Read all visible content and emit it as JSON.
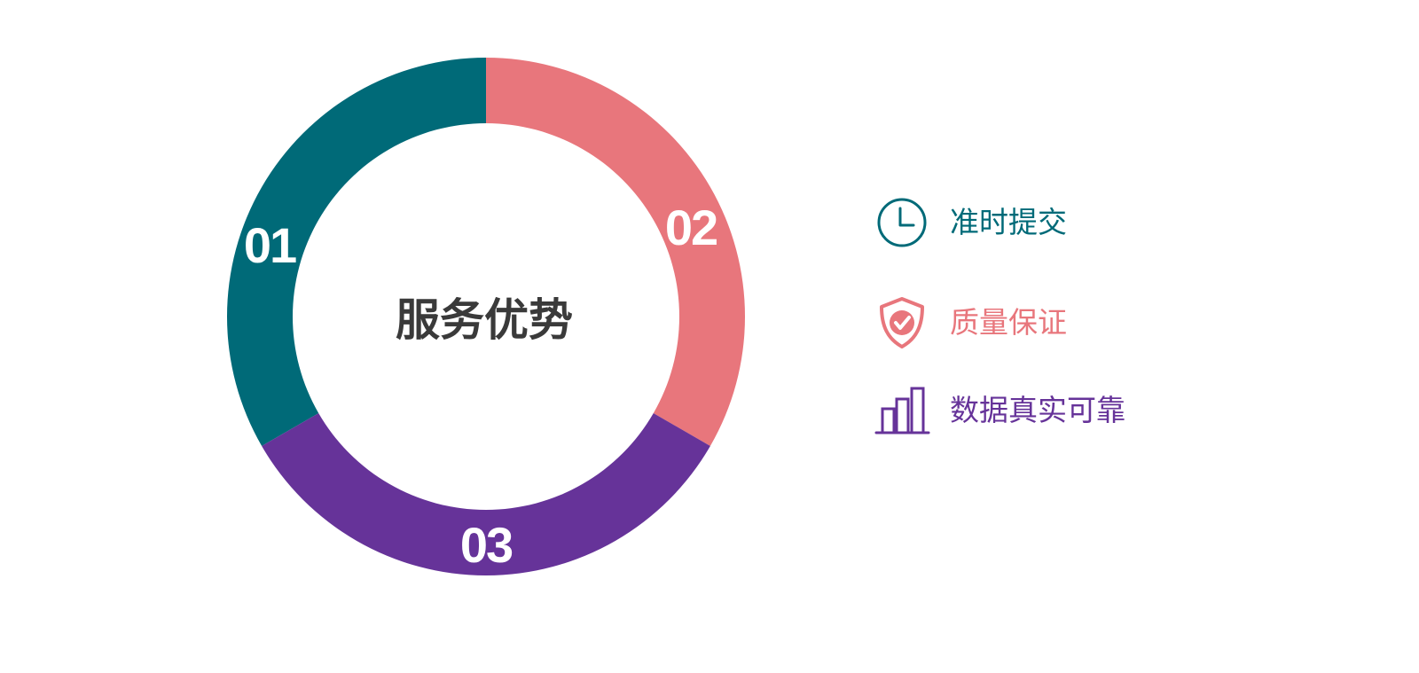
{
  "center_title": "服务优势",
  "colors": {
    "teal": "#006A78",
    "coral": "#E8767C",
    "purple": "#663399",
    "center_text": "#3A3A3A"
  },
  "segments": [
    {
      "number": "01",
      "color": "#006A78"
    },
    {
      "number": "02",
      "color": "#E8767C"
    },
    {
      "number": "03",
      "color": "#663399"
    }
  ],
  "legend": [
    {
      "label": "准时提交",
      "icon": "clock-icon",
      "color": "#006A78"
    },
    {
      "label": "质量保证",
      "icon": "shield-check-icon",
      "color": "#E8767C"
    },
    {
      "label": "数据真实可靠",
      "icon": "bar-chart-icon",
      "color": "#663399"
    }
  ]
}
